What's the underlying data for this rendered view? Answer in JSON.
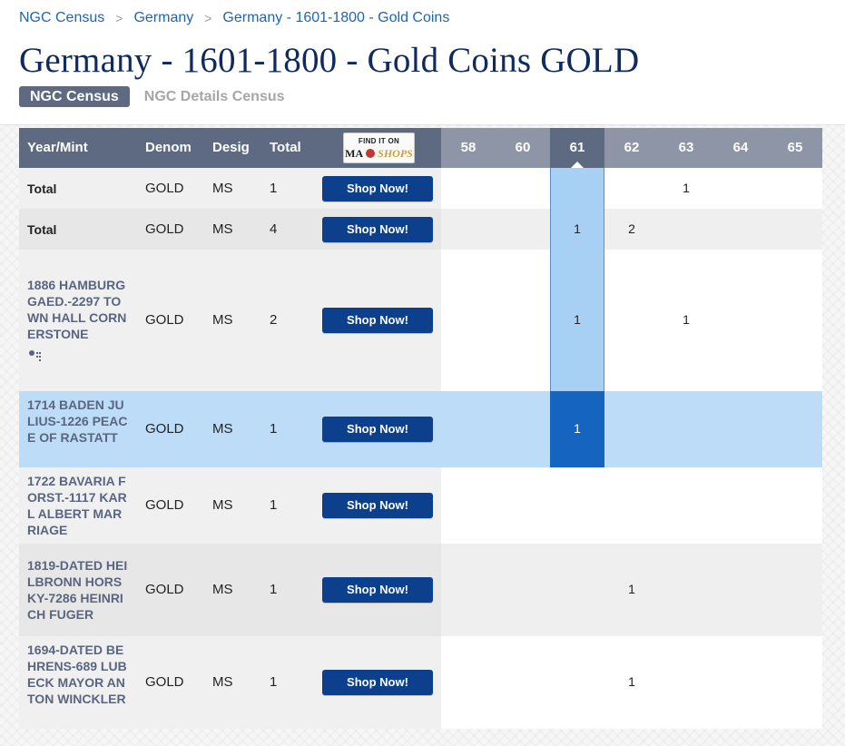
{
  "breadcrumb": {
    "items": [
      "NGC Census",
      "Germany",
      "Germany - 1601-1800 - Gold Coins"
    ],
    "separator": ">"
  },
  "page_title": "Germany - 1601-1800 - Gold Coins GOLD",
  "tabs": {
    "active": "NGC Census",
    "other": "NGC Details Census"
  },
  "table": {
    "headers": {
      "year_mint": "Year/Mint",
      "denom": "Denom",
      "desig": "Desig",
      "total": "Total",
      "shop_logo_line1": "FIND IT ON",
      "shop_logo_ma": "MA",
      "shop_logo_shops": "SHOPS"
    },
    "grades": [
      "58",
      "60",
      "61",
      "62",
      "63",
      "64",
      "65"
    ],
    "selected_grade": "61",
    "shop_label": "Shop Now!",
    "rows": [
      {
        "name": "Total",
        "denom": "GOLD",
        "desig": "MS",
        "total": "1",
        "counts": {
          "63": "1"
        }
      },
      {
        "name": "Total",
        "denom": "GOLD",
        "desig": "MS",
        "total": "4",
        "counts": {
          "61": "1",
          "62": "2"
        }
      },
      {
        "name": "1886 HAMBURG GAED.-2297 TOWN HALL CORNERSTONE",
        "denom": "GOLD",
        "desig": "MS",
        "total": "2",
        "counts": {
          "61": "1",
          "63": "1"
        }
      },
      {
        "name": "1714 BADEN JULIUS-1226 PEACE OF RASTATT",
        "denom": "GOLD",
        "desig": "MS",
        "total": "1",
        "counts": {
          "61": "1"
        }
      },
      {
        "name": "1722 BAVARIA FORST.-1117 KARL ALBERT MARRIAGE",
        "denom": "GOLD",
        "desig": "MS",
        "total": "1",
        "counts": {}
      },
      {
        "name": "1819-DATED HEILBRONN HORSKY-7286 HEINRICH FUGER",
        "denom": "GOLD",
        "desig": "MS",
        "total": "1",
        "counts": {
          "62": "1"
        }
      },
      {
        "name": "1694-DATED BEHRENS-689 LUBECK MAYOR ANTON WINCKLER",
        "denom": "GOLD",
        "desig": "MS",
        "total": "1",
        "counts": {
          "62": "1"
        }
      }
    ]
  }
}
